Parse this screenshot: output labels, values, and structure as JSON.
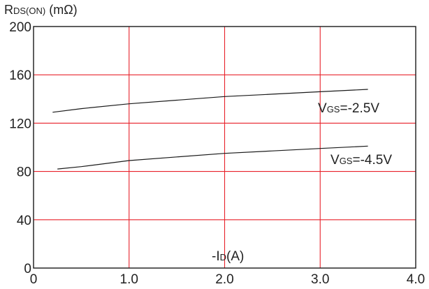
{
  "chart_data": {
    "type": "line",
    "ylabel": {
      "main": "R",
      "sub": "DS(ON)",
      "unit": " (mΩ)"
    },
    "xlabel": {
      "pre": "-I",
      "sub": "D",
      "unit": "(A)"
    },
    "xlim": [
      0,
      4.0
    ],
    "ylim": [
      0,
      200
    ],
    "x_ticks": [
      0,
      1.0,
      2.0,
      3.0,
      4.0
    ],
    "x_tick_labels": [
      "0",
      "1.0",
      "2.0",
      "3.0",
      "4.0"
    ],
    "y_ticks": [
      0,
      40,
      80,
      120,
      160,
      200
    ],
    "y_tick_labels": [
      "0",
      "40",
      "80",
      "120",
      "160",
      "200"
    ],
    "grid": true,
    "colors": {
      "grid": "#e8212a",
      "line": "#1a1a1a",
      "text": "#222222"
    },
    "series": [
      {
        "name": "VGS=-2.5V",
        "label": {
          "main": "V",
          "sub": "GS",
          "rest": "=-2.5V"
        },
        "x": [
          0.2,
          0.5,
          1.0,
          1.5,
          2.0,
          2.5,
          3.0,
          3.5
        ],
        "y": [
          129,
          132,
          136,
          139,
          142,
          144,
          146,
          148
        ]
      },
      {
        "name": "VGS=-4.5V",
        "label": {
          "main": "V",
          "sub": "GS",
          "rest": "=-4.5V"
        },
        "x": [
          0.25,
          0.5,
          1.0,
          1.5,
          2.0,
          2.5,
          3.0,
          3.5
        ],
        "y": [
          82,
          84,
          89,
          92,
          95,
          97,
          99,
          101
        ]
      }
    ]
  }
}
